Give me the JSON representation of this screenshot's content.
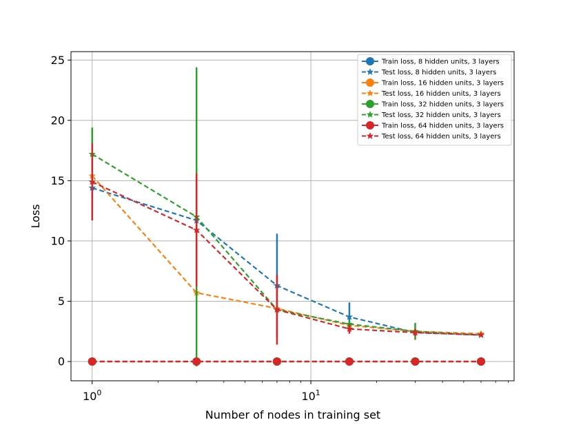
{
  "chart_data": {
    "type": "line",
    "title": "",
    "xlabel": "Number of nodes in training set",
    "ylabel": "Loss",
    "xscale": "log",
    "xlim": [
      0.8,
      85
    ],
    "ylim": [
      -1.6,
      25.7
    ],
    "grid": true,
    "legend_location": "top-right",
    "x_major_ticks": [
      {
        "value": 1,
        "base": "10",
        "exp": "0"
      },
      {
        "value": 10,
        "base": "10",
        "exp": "1"
      }
    ],
    "x_minor_ticks": [
      2,
      3,
      4,
      5,
      6,
      7,
      8,
      9,
      20,
      30,
      40,
      50,
      60,
      70,
      80
    ],
    "y_ticks": [
      0,
      5,
      10,
      15,
      20,
      25
    ],
    "x": [
      1,
      3,
      7,
      15,
      30,
      60
    ],
    "series": [
      {
        "name": "Train loss, 8 hidden units, 3 layers",
        "color": "#1f77b4",
        "marker": "circle",
        "values": [
          0,
          0,
          0,
          0,
          0,
          0
        ],
        "errors": [
          0,
          0,
          0,
          0,
          0,
          0
        ]
      },
      {
        "name": "Test loss, 8 hidden units, 3 layers",
        "color": "#1f77b4",
        "marker": "star",
        "values": [
          14.4,
          11.7,
          6.3,
          3.7,
          2.4,
          2.2
        ],
        "errors": [
          0.2,
          0.3,
          4.3,
          1.2,
          0.2,
          0.1
        ]
      },
      {
        "name": "Train loss, 16 hidden units, 3 layers",
        "color": "#ff7f0e",
        "marker": "circle",
        "values": [
          0,
          0,
          0,
          0,
          0,
          0
        ],
        "errors": [
          0,
          0,
          0,
          0,
          0,
          0
        ]
      },
      {
        "name": "Test loss, 16 hidden units, 3 layers",
        "color": "#ff7f0e",
        "marker": "star",
        "values": [
          15.4,
          5.7,
          4.4,
          3.0,
          2.5,
          2.3
        ],
        "errors": [
          0.3,
          0.3,
          0.2,
          0.2,
          0.2,
          0.1
        ]
      },
      {
        "name": "Train loss, 32 hidden units, 3 layers",
        "color": "#2ca02c",
        "marker": "circle",
        "values": [
          0,
          0,
          0,
          0,
          0,
          0
        ],
        "errors": [
          0,
          0,
          0,
          0,
          0,
          0
        ]
      },
      {
        "name": "Test loss, 32 hidden units, 3 layers",
        "color": "#2ca02c",
        "marker": "star",
        "values": [
          17.2,
          12.0,
          4.3,
          3.1,
          2.5,
          2.2
        ],
        "errors": [
          2.2,
          12.4,
          0.3,
          0.3,
          0.7,
          0.1
        ]
      },
      {
        "name": "Train loss, 64 hidden units, 3 layers",
        "color": "#d62728",
        "marker": "circle",
        "values": [
          0,
          0,
          0,
          0,
          0,
          0
        ],
        "errors": [
          0,
          0,
          0,
          0,
          0,
          0
        ]
      },
      {
        "name": "Test loss, 64 hidden units, 3 layers",
        "color": "#d62728",
        "marker": "star",
        "values": [
          14.9,
          10.9,
          4.3,
          2.7,
          2.4,
          2.2
        ],
        "errors": [
          3.2,
          4.7,
          2.9,
          0.4,
          0.3,
          0.1
        ]
      }
    ]
  }
}
